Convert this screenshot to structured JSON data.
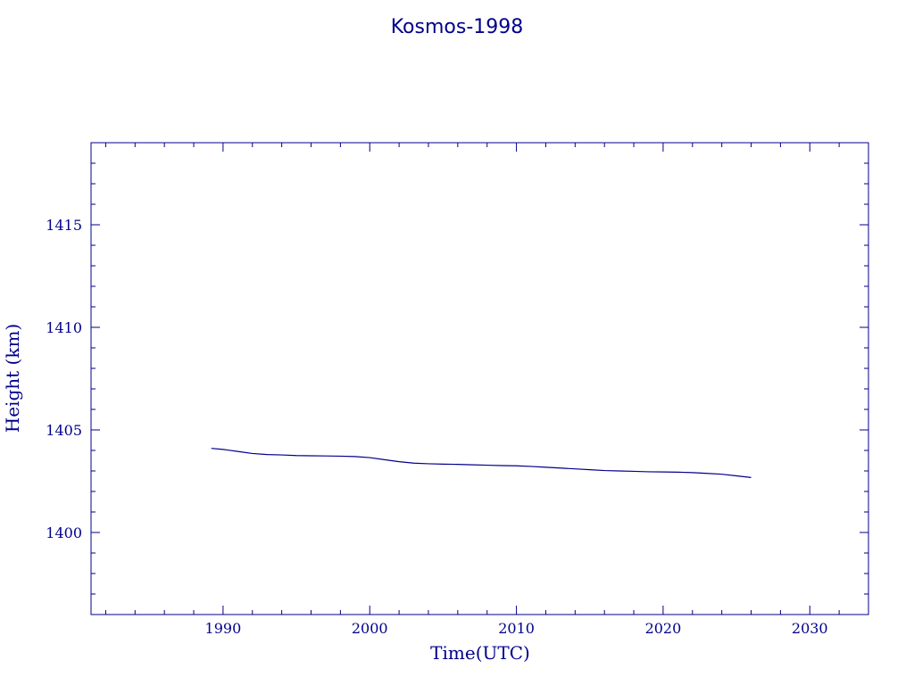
{
  "chart_data": {
    "type": "line",
    "title": "Kosmos-1998",
    "xlabel": "Time(UTC)",
    "ylabel": "Height (km)",
    "xlim": [
      1981,
      2034
    ],
    "ylim": [
      1396,
      1419
    ],
    "x_ticks": [
      1990,
      2000,
      2010,
      2020,
      2030
    ],
    "y_ticks": [
      1400,
      1405,
      1410,
      1415
    ],
    "color": "#00008b",
    "grid": false,
    "series": [
      {
        "x": [
          1989.2,
          1990,
          1991,
          1992,
          1993,
          1994,
          1995,
          1996,
          1997,
          1998,
          1999,
          2000,
          2001,
          2002,
          2003,
          2004,
          2005,
          2006,
          2007,
          2008,
          2009,
          2010,
          2011,
          2012,
          2013,
          2014,
          2015,
          2016,
          2017,
          2018,
          2019,
          2020,
          2021,
          2022,
          2023,
          2024,
          2025,
          2026
        ],
        "y": [
          1404.1,
          1404.05,
          1403.95,
          1403.85,
          1403.8,
          1403.78,
          1403.75,
          1403.74,
          1403.73,
          1403.72,
          1403.7,
          1403.65,
          1403.55,
          1403.45,
          1403.38,
          1403.35,
          1403.33,
          1403.32,
          1403.3,
          1403.28,
          1403.26,
          1403.25,
          1403.22,
          1403.18,
          1403.14,
          1403.1,
          1403.06,
          1403.02,
          1403.0,
          1402.98,
          1402.96,
          1402.95,
          1402.94,
          1402.92,
          1402.88,
          1402.84,
          1402.76,
          1402.68
        ]
      }
    ]
  }
}
